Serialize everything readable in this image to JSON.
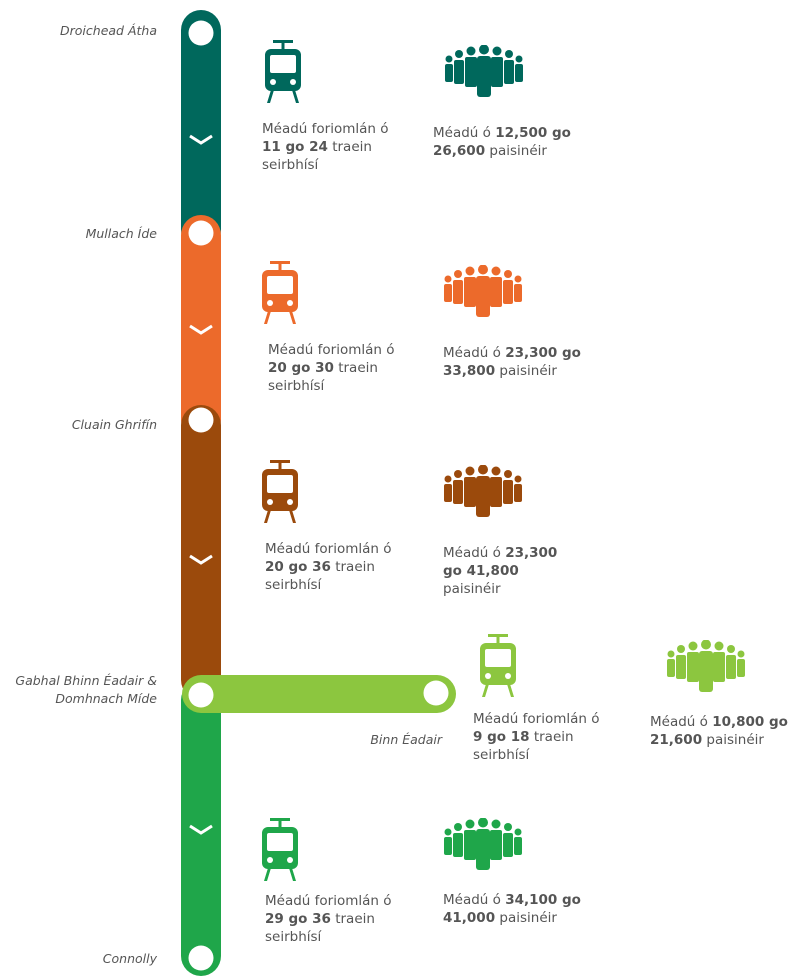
{
  "stations": [
    {
      "lines": [
        "Droichead Átha"
      ]
    },
    {
      "lines": [
        "Mullach Íde"
      ]
    },
    {
      "lines": [
        "Cluain Ghrifín"
      ]
    },
    {
      "lines": [
        "Gabhal Bhinn Éadair &",
        "Domhnach Míde"
      ]
    },
    {
      "lines": [
        "Connolly"
      ]
    }
  ],
  "branch_station": "Binn Éadair",
  "segments": [
    {
      "color": "#00685c",
      "trains": {
        "before": "Méadú foriomlán ó",
        "bold": "11 go 24",
        "after": "traein seirbhísí"
      },
      "passengers": {
        "before": "Méadú ó",
        "bold": "12,500 go 26,600",
        "after": "paisinéir"
      }
    },
    {
      "color": "#ec6a2b",
      "trains": {
        "before": "Méadú foriomlán ó",
        "bold": "20 go 30",
        "after": "traein seirbhísí"
      },
      "passengers": {
        "before": "Méadú ó",
        "bold": "23,300 go 33,800",
        "after": "paisinéir"
      }
    },
    {
      "color": "#9b4a0c",
      "trains": {
        "before": "Méadú foriomlán ó",
        "bold": "20 go 36",
        "after": "traein seirbhísí"
      },
      "passengers": {
        "before": "Méadú ó",
        "bold": "23,300 go 41,800",
        "after": "paisinéir"
      }
    },
    {
      "color": "#8cc63f",
      "trains": {
        "before": "Méadú foriomlán ó",
        "bold": "9 go 18",
        "after": "traein seirbhísí"
      },
      "passengers": {
        "before": "Méadú ó",
        "bold": "10,800 go 21,600",
        "after": "paisinéir"
      }
    },
    {
      "color": "#1fa64a",
      "trains": {
        "before": "Méadú foriomlán ó",
        "bold": "29 go 36",
        "after": "traein seirbhísí"
      },
      "passengers": {
        "before": "Méadú ó",
        "bold": "34,100 go 41,000",
        "after": "paisinéir"
      }
    }
  ]
}
